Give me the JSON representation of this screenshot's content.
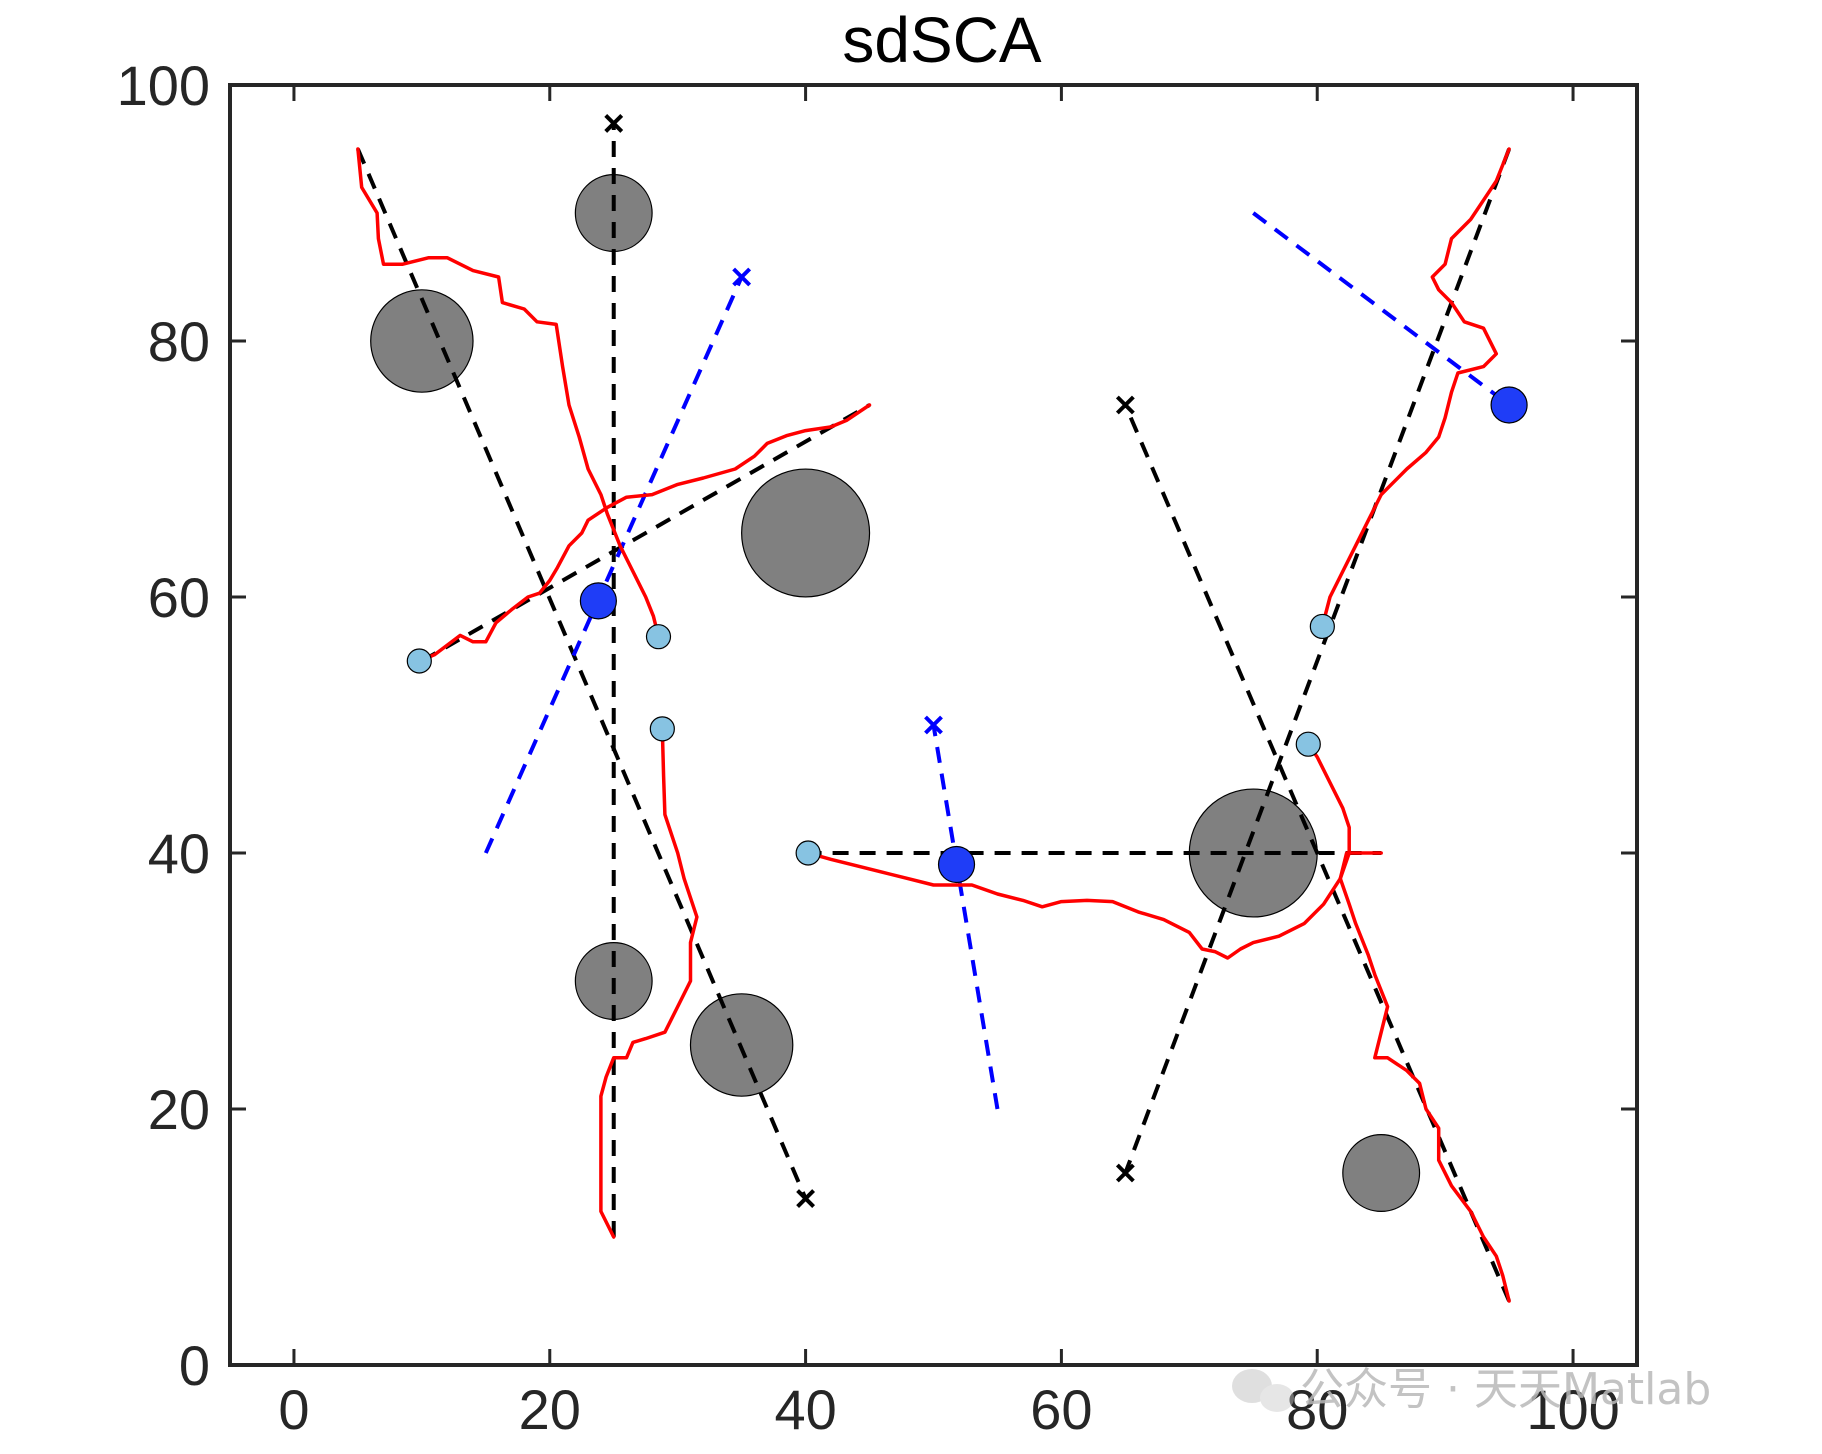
{
  "chart_data": {
    "type": "scatter",
    "title": "sdSCA",
    "xlabel": "",
    "ylabel": "",
    "xlim": [
      -5,
      105
    ],
    "ylim": [
      0,
      100
    ],
    "xticks": [
      0,
      20,
      40,
      60,
      80,
      100
    ],
    "yticks": [
      0,
      20,
      40,
      60,
      80,
      100
    ],
    "grid": false,
    "legend": "none",
    "colors": {
      "obstacle": "#808080",
      "planned_path": "#000000",
      "actual_path": "#ff0000",
      "dynamic_path": "#0000ff",
      "agent_current": "#87c3e2",
      "dynamic_obstacle": "#1f3df7",
      "axis": "#262626"
    },
    "obstacles": [
      {
        "x": 25,
        "y": 90,
        "r": 3
      },
      {
        "x": 10,
        "y": 80,
        "r": 4
      },
      {
        "x": 40,
        "y": 65,
        "r": 5
      },
      {
        "x": 25,
        "y": 30,
        "r": 3
      },
      {
        "x": 35,
        "y": 25,
        "r": 4
      },
      {
        "x": 75,
        "y": 40,
        "r": 5
      },
      {
        "x": 85,
        "y": 15,
        "r": 3
      }
    ],
    "planned_paths": [
      {
        "start": [
          25,
          10
        ],
        "goal": [
          25,
          97
        ],
        "goal_marked": true
      },
      {
        "start": [
          5,
          95
        ],
        "goal": [
          40,
          13
        ],
        "goal_marked": true
      },
      {
        "start": [
          10,
          55
        ],
        "goal": [
          45,
          75
        ],
        "goal_marked": false
      },
      {
        "start": [
          95,
          95
        ],
        "goal": [
          65,
          15
        ],
        "goal_marked": true
      },
      {
        "start": [
          95,
          5
        ],
        "goal": [
          65,
          75
        ],
        "goal_marked": true
      },
      {
        "start": [
          40,
          40
        ],
        "goal": [
          85,
          40
        ],
        "goal_marked": false
      }
    ],
    "dynamic_paths": [
      {
        "start": [
          15,
          40
        ],
        "goal": [
          35,
          85
        ],
        "goal_marked": true
      },
      {
        "start": [
          55,
          20
        ],
        "goal": [
          50,
          50
        ],
        "goal_marked": true
      },
      {
        "start": [
          75,
          90
        ],
        "goal": [
          95,
          75
        ],
        "goal_marked": false
      }
    ],
    "dynamic_obstacles": [
      {
        "x": 23.8,
        "y": 59.7
      },
      {
        "x": 51.8,
        "y": 39.1
      },
      {
        "x": 95.0,
        "y": 75.0
      }
    ],
    "agents": [
      {
        "x": 28.5,
        "y": 56.9
      },
      {
        "x": 9.8,
        "y": 55.0
      },
      {
        "x": 28.8,
        "y": 49.7
      },
      {
        "x": 40.2,
        "y": 40.0
      },
      {
        "x": 80.4,
        "y": 57.7
      },
      {
        "x": 79.3,
        "y": 48.5
      }
    ],
    "trajectories": [
      [
        [
          5,
          95
        ],
        [
          5.3,
          92
        ],
        [
          6.5,
          90
        ],
        [
          6.6,
          88
        ],
        [
          7,
          86
        ],
        [
          8.5,
          86
        ],
        [
          10.5,
          86.5
        ],
        [
          12,
          86.5
        ],
        [
          14,
          85.5
        ],
        [
          16,
          85
        ],
        [
          16.3,
          83
        ],
        [
          18,
          82.5
        ],
        [
          19,
          81.5
        ],
        [
          20.5,
          81.3
        ],
        [
          21,
          78
        ],
        [
          21.5,
          75
        ],
        [
          22.3,
          72.5
        ],
        [
          23,
          70
        ],
        [
          24,
          68
        ],
        [
          24.5,
          66.5
        ],
        [
          25.5,
          64
        ],
        [
          26.5,
          62
        ],
        [
          27.5,
          60
        ],
        [
          28.1,
          58.5
        ],
        [
          28.5,
          56.9
        ]
      ],
      [
        [
          9.8,
          55
        ],
        [
          11,
          55.5
        ],
        [
          13,
          57
        ],
        [
          14,
          56.5
        ],
        [
          15,
          56.5
        ],
        [
          15.8,
          58
        ],
        [
          17,
          59
        ],
        [
          18.3,
          60
        ],
        [
          19.2,
          60.3
        ],
        [
          20,
          61.3
        ],
        [
          20.6,
          62.3
        ],
        [
          21.5,
          64
        ],
        [
          22.5,
          65
        ],
        [
          23,
          66
        ],
        [
          24.5,
          67
        ],
        [
          26,
          67.8
        ],
        [
          28,
          68
        ],
        [
          30,
          68.8
        ],
        [
          32,
          69.3
        ],
        [
          34.5,
          70
        ],
        [
          36,
          71
        ],
        [
          37,
          72
        ],
        [
          38.5,
          72.6
        ],
        [
          40,
          73
        ],
        [
          42,
          73.3
        ],
        [
          43.2,
          73.8
        ],
        [
          45,
          75
        ]
      ],
      [
        [
          28.8,
          49.7
        ],
        [
          28.9,
          46
        ],
        [
          29,
          43
        ],
        [
          30,
          40
        ],
        [
          30.5,
          38
        ],
        [
          31.5,
          35
        ],
        [
          31,
          33
        ],
        [
          31,
          30
        ],
        [
          30,
          28
        ],
        [
          29,
          26
        ],
        [
          27.5,
          25.5
        ],
        [
          26.5,
          25.2
        ],
        [
          26,
          24
        ],
        [
          25,
          24
        ],
        [
          24.4,
          22.5
        ],
        [
          24,
          21
        ],
        [
          24,
          18
        ],
        [
          24,
          16
        ],
        [
          24,
          14
        ],
        [
          24,
          12
        ],
        [
          25,
          10
        ]
      ],
      [
        [
          40.2,
          40
        ],
        [
          42,
          39.5
        ],
        [
          44,
          39
        ],
        [
          46,
          38.5
        ],
        [
          48,
          38
        ],
        [
          50,
          37.5
        ],
        [
          53,
          37.5
        ],
        [
          55,
          36.8
        ],
        [
          57,
          36.3
        ],
        [
          58.5,
          35.8
        ],
        [
          60,
          36.2
        ],
        [
          62,
          36.3
        ],
        [
          64,
          36.2
        ],
        [
          66,
          35.4
        ],
        [
          68,
          34.8
        ],
        [
          70,
          33.8
        ],
        [
          71,
          32.5
        ],
        [
          72,
          32.3
        ],
        [
          73,
          31.8
        ],
        [
          74,
          32.5
        ],
        [
          75,
          33
        ],
        [
          77,
          33.5
        ],
        [
          79,
          34.5
        ],
        [
          80.5,
          36
        ],
        [
          81.8,
          38
        ],
        [
          82.3,
          40
        ],
        [
          83.4,
          40
        ],
        [
          85,
          40
        ]
      ],
      [
        [
          80.4,
          57.7
        ],
        [
          81,
          60
        ],
        [
          82,
          62
        ],
        [
          83,
          64
        ],
        [
          84,
          66
        ],
        [
          85,
          68
        ],
        [
          86,
          69
        ],
        [
          87,
          70
        ],
        [
          88.5,
          71.3
        ],
        [
          89.5,
          72.5
        ],
        [
          90,
          74
        ],
        [
          90.5,
          76
        ],
        [
          91,
          77.5
        ],
        [
          93,
          78
        ],
        [
          94,
          79
        ],
        [
          93,
          81
        ],
        [
          91.5,
          81.5
        ],
        [
          90.5,
          83
        ],
        [
          89.5,
          84
        ],
        [
          89,
          85
        ],
        [
          90,
          86
        ],
        [
          90.5,
          88
        ],
        [
          92,
          89.5
        ],
        [
          93,
          91
        ],
        [
          94,
          92.5
        ],
        [
          95,
          95
        ]
      ],
      [
        [
          79.3,
          48.5
        ],
        [
          80,
          47.5
        ],
        [
          81,
          45.5
        ],
        [
          82,
          43.5
        ],
        [
          82.5,
          42
        ],
        [
          82.5,
          40
        ],
        [
          81.8,
          38
        ],
        [
          82.5,
          36
        ],
        [
          83,
          34.5
        ],
        [
          84,
          32
        ],
        [
          84.5,
          30.5
        ],
        [
          85.5,
          28
        ],
        [
          85,
          26
        ],
        [
          84.5,
          24
        ],
        [
          85.5,
          24
        ],
        [
          87,
          23
        ],
        [
          88,
          22
        ],
        [
          88.5,
          20
        ],
        [
          89.5,
          18.5
        ],
        [
          89.5,
          16
        ],
        [
          90.5,
          14
        ],
        [
          92,
          12
        ],
        [
          93,
          10
        ],
        [
          94,
          8.5
        ],
        [
          94.5,
          7
        ],
        [
          95,
          5
        ]
      ]
    ]
  },
  "watermark": {
    "text": "公众号 · 天天Matlab"
  }
}
